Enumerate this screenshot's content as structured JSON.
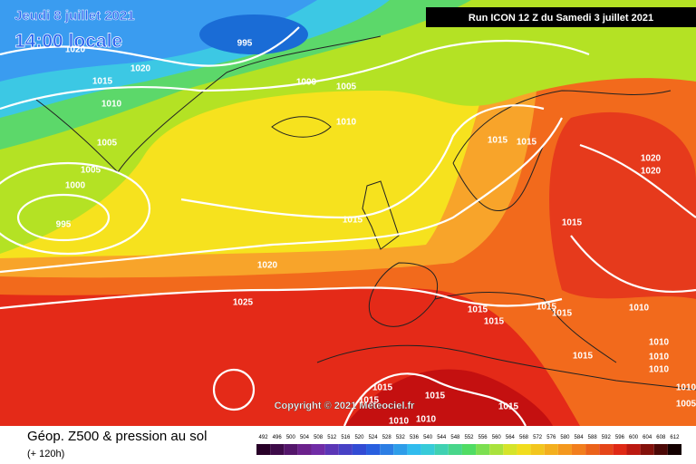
{
  "header": {
    "date": "Jeudi 8 juillet 2021",
    "time": "14:00 locale",
    "run": "Run ICON 12 Z du Samedi 3 juillet 2021"
  },
  "copyright": "Copyright © 2021 Meteociel.fr",
  "footer": {
    "title": "Géop. Z500 & pression au sol",
    "lead": "(+ 120h)"
  },
  "isobar_labels": [
    "995",
    "1020",
    "1020",
    "1015",
    "1010",
    "1000",
    "1005",
    "1010",
    "1005",
    "1005",
    "1000",
    "995",
    "1015",
    "1015",
    "1020",
    "1020",
    "1015",
    "1015",
    "1020",
    "1025",
    "1015",
    "1015",
    "1015",
    "1015",
    "1010",
    "1010",
    "1010",
    "1010",
    "1015",
    "1015",
    "1015",
    "1015",
    "1015",
    "1010",
    "1010",
    "1010",
    "1005"
  ],
  "legend": [
    "492",
    "496",
    "500",
    "504",
    "508",
    "512",
    "516",
    "520",
    "524",
    "528",
    "532",
    "536",
    "540",
    "544",
    "548",
    "552",
    "556",
    "560",
    "564",
    "568",
    "572",
    "576",
    "580",
    "584",
    "588",
    "592",
    "596",
    "600",
    "604",
    "608",
    "612"
  ]
}
